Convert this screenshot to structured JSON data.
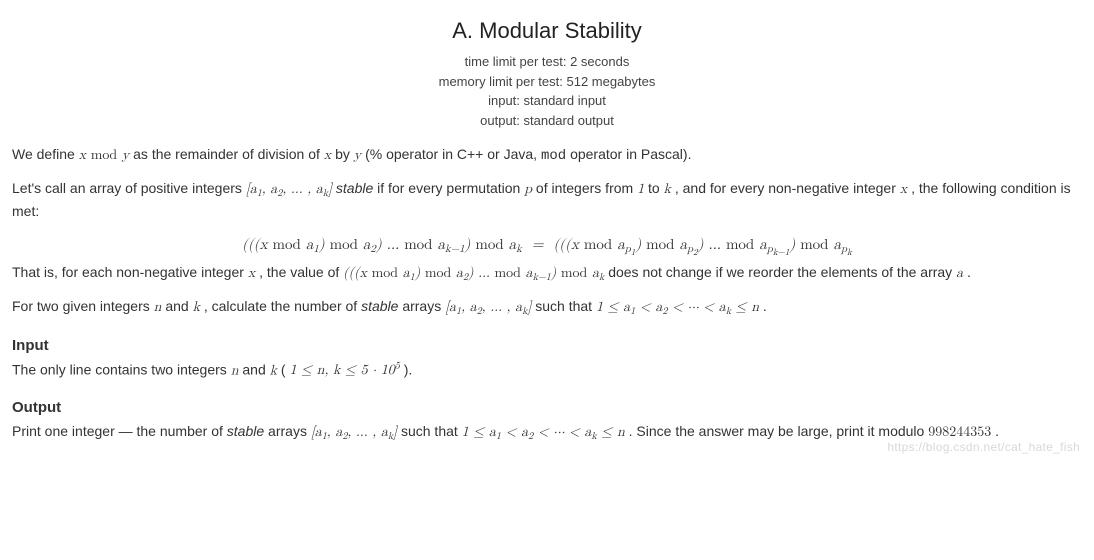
{
  "title": "A. Modular Stability",
  "limits": {
    "time": "time limit per test: 2 seconds",
    "memory": "memory limit per test: 512 megabytes",
    "input": "input: standard input",
    "output": "output: standard output"
  },
  "p1_a": "We define ",
  "p1_m1": "x mod y",
  "p1_b": " as the remainder of division of ",
  "p1_m2": "x",
  "p1_c": " by ",
  "p1_m3": "y",
  "p1_d": " (% operator in C++ or Java, ",
  "p1_code": "mod",
  "p1_e": " operator in Pascal).",
  "p2_a": "Let's call an array of positive integers ",
  "p2_b": " stable",
  "p2_c": " if for every permutation ",
  "p2_m2": "p",
  "p2_d": " of integers from ",
  "p2_m3": "1",
  "p2_e": " to ",
  "p2_m4": "k",
  "p2_f": ", and for every non-negative integer ",
  "p2_m5": "x",
  "p2_g": ", the following condition is met:",
  "p3_a": "That is, for each non-negative integer ",
  "p3_m1": "x",
  "p3_b": ", the value of ",
  "p3_c": " does not change if we reorder the elements of the array ",
  "p3_m3": "a",
  "p3_d": ".",
  "p4_a": "For two given integers ",
  "p4_m1": "n",
  "p4_b": " and ",
  "p4_m2": "k",
  "p4_c": ", calculate the number of ",
  "p4_stable": "stable",
  "p4_d": " arrays ",
  "p4_e": " such that ",
  "p4_f": ".",
  "input_h": "Input",
  "in_a": "The only line contains two integers ",
  "in_m1": "n",
  "in_b": " and ",
  "in_m2": "k",
  "in_c": " (",
  "in_d": ").",
  "output_h": "Output",
  "out_a": "Print one integer — the number of ",
  "out_stable": "stable",
  "out_b": " arrays ",
  "out_c": " such that ",
  "out_d": ". Since the answer may be large, print it modulo ",
  "out_mod": "998244353",
  "out_e": ".",
  "watermark": "https://blog.csdn.net/cat_hate_fish"
}
